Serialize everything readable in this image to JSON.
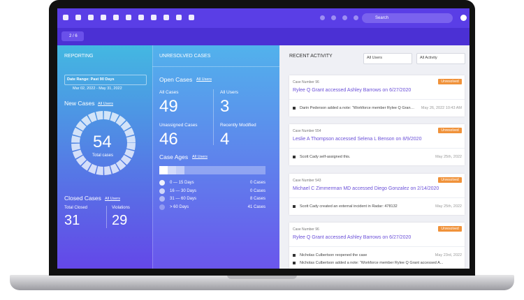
{
  "nav": {
    "search": "Search",
    "pager": "2 / 6"
  },
  "reporting": {
    "title": "REPORTING",
    "date_range": "Date Range: Past 90 Days",
    "dates": "Mar 02, 2022 - May 31, 2022",
    "new_cases": {
      "label": "New Cases",
      "filter": "All Users",
      "total": "54",
      "total_label": "Total cases"
    },
    "closed": {
      "label": "Closed Cases",
      "filter": "All Users",
      "total_label": "Total Closed",
      "total": "31",
      "violations_label": "Violations",
      "violations": "29"
    }
  },
  "unresolved": {
    "title": "UNRESOLVED CASES",
    "open_label": "Open Cases",
    "open_filter": "All Users",
    "stats": [
      {
        "label": "All Cases",
        "value": "49"
      },
      {
        "label": "All Users",
        "value": "3"
      },
      {
        "label": "Unassigned Cases",
        "value": "46"
      },
      {
        "label": "Recently Modified",
        "value": "4"
      }
    ],
    "ages_label": "Case Ages",
    "ages_filter": "All Users",
    "buckets": [
      {
        "label": "0 — 15 Days",
        "count": "0 Cases"
      },
      {
        "label": "16 — 30 Days",
        "count": "0 Cases"
      },
      {
        "label": "31 — 60 Days",
        "count": "8 Cases"
      },
      {
        "label": "> 60 Days",
        "count": "41 Cases"
      }
    ]
  },
  "activity": {
    "title": "RECENT ACTIVITY",
    "filters": [
      "All Users",
      "All Activity"
    ],
    "cards": [
      {
        "case": "Case Number 96",
        "status": "Unresolved",
        "headline": "Rylee Q Grant accessed Ashley Barrows on 6/27/2020",
        "items": [
          {
            "text": "Darin Pederson added a note: “Workforce member Rylee Q Grant accessed Ashley Barrows",
            "time": "May 26, 2022 10:43 AM"
          }
        ]
      },
      {
        "case": "Case Number 554",
        "status": "Unresolved",
        "headline": "Leslie A Thompson accessed Selena L Benson on 8/9/2020",
        "items": [
          {
            "text": "Scott Cady self-assigned this.",
            "time": "May 25th, 2022"
          }
        ]
      },
      {
        "case": "Case Number 543",
        "status": "Unresolved",
        "headline": "Michael C Zimmerman MD accessed Diego Gonzalez on 2/14/2020",
        "items": [
          {
            "text": "Scott Cady created an external incident in Radar: 478132",
            "time": "May 25th, 2022"
          }
        ]
      },
      {
        "case": "Case Number 96",
        "status": "Unresolved",
        "headline": "Rylee Q Grant accessed Ashley Barrows on 6/27/2020",
        "items": [
          {
            "text": "Nicholas Culbertson reopened the case",
            "time": "May 23rd, 2022"
          },
          {
            "text": "Nicholas Culbertson added a note: “Workforce member Rylee Q Grant accessed A...",
            "time": ""
          }
        ]
      }
    ]
  }
}
